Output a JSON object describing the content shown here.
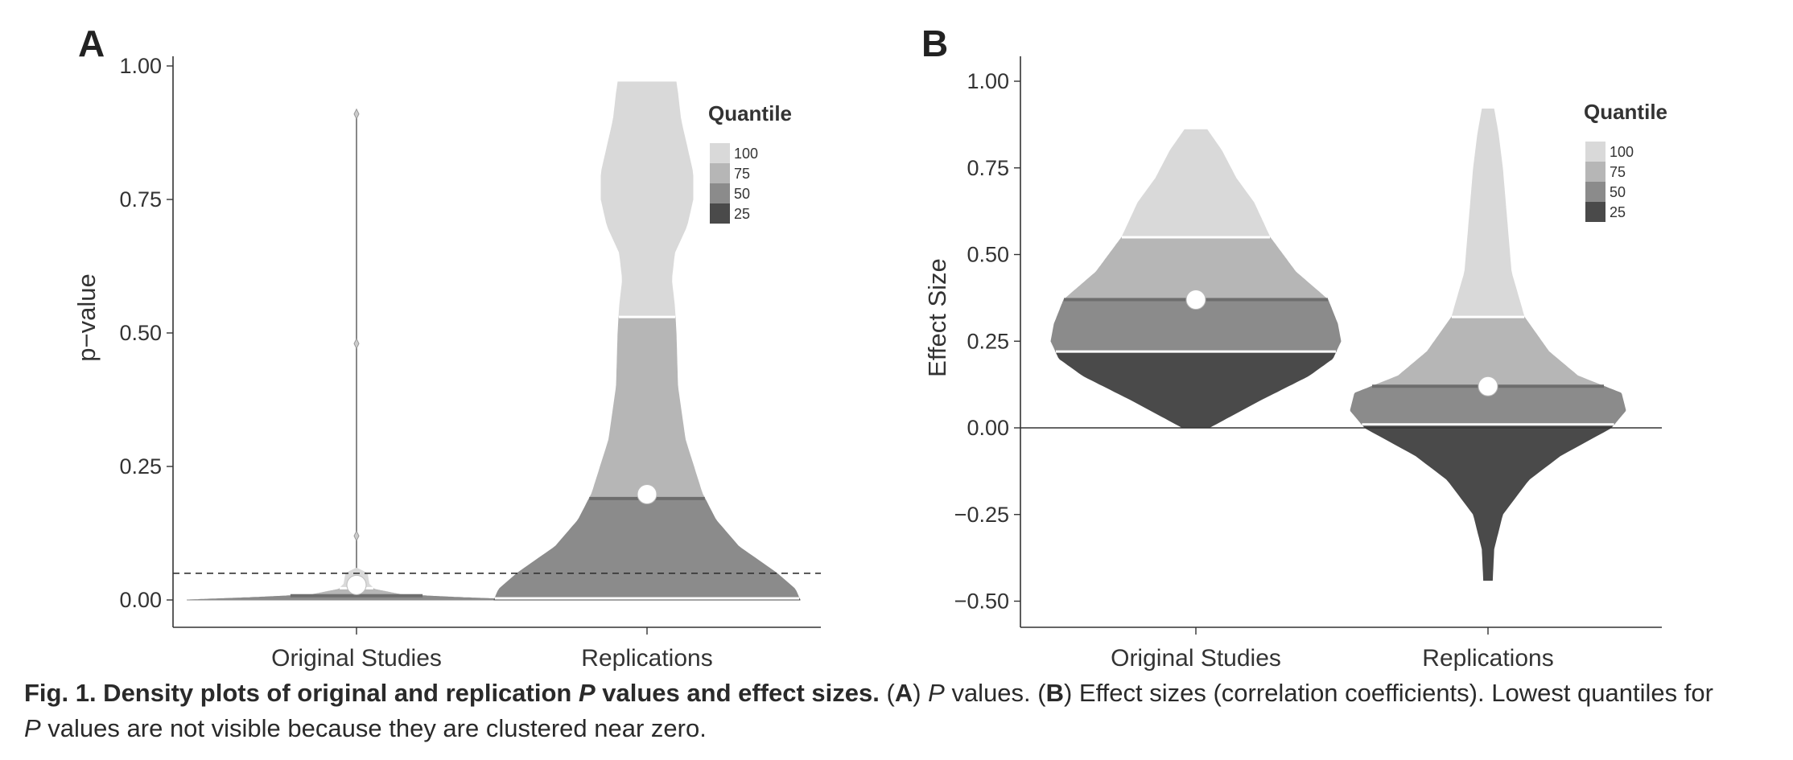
{
  "caption": {
    "bold_prefix": "Fig. 1. Density plots of original and replication ",
    "bold_italic_P": "P",
    "bold_suffix": " values and effect sizes.",
    "part_a_open": " (",
    "part_a_letter": "A",
    "part_a_close": ") ",
    "part_a_italic_P": "P",
    "part_a_text": " values. (",
    "part_b_letter": "B",
    "part_b_text": ") Effect sizes (correlation coefficients). Lowest quantiles for ",
    "line2_italic_P": "P",
    "line2_text": " values are not visible because they are clustered near zero."
  },
  "colors": {
    "q100": "#d9d9d9",
    "q75": "#b6b6b6",
    "q50": "#8b8b8b",
    "q25": "#4a4a4a",
    "median_line": "#6e6e6e",
    "axis": "#333333",
    "mean_dot": "#ffffff"
  },
  "chart_data": [
    {
      "panel": "A",
      "type": "violin",
      "ylabel": "p−value",
      "yticks": [
        "0.00",
        "0.25",
        "0.50",
        "0.75",
        "1.00"
      ],
      "ylim": [
        -0.05,
        1.02
      ],
      "reference_line": {
        "y": 0.05,
        "style": "dashed"
      },
      "categories": [
        "Original Studies",
        "Replications"
      ],
      "legend": {
        "title": "Quantile",
        "placement": "right",
        "entries": [
          "100",
          "75",
          "50",
          "25"
        ]
      },
      "series": [
        {
          "category": "Original Studies",
          "mean": 0.028,
          "quantiles": {
            "q25": 0.0,
            "q50": 0.008,
            "q75": 0.022,
            "q100": 0.91
          },
          "outliers": [
            0.12,
            0.48,
            0.91
          ],
          "density": [
            [
              0.0,
              0.95
            ],
            [
              0.005,
              0.55
            ],
            [
              0.01,
              0.25
            ],
            [
              0.02,
              0.1
            ],
            [
              0.03,
              0.07
            ],
            [
              0.05,
              0.06
            ],
            [
              0.06,
              0.0
            ]
          ]
        },
        {
          "category": "Replications",
          "mean": 0.198,
          "quantiles": {
            "q25": 0.003,
            "q50": 0.19,
            "q75": 0.53,
            "q100": 0.97
          },
          "density": [
            [
              0.0,
              1.0
            ],
            [
              0.02,
              0.97
            ],
            [
              0.05,
              0.85
            ],
            [
              0.1,
              0.6
            ],
            [
              0.15,
              0.45
            ],
            [
              0.2,
              0.36
            ],
            [
              0.3,
              0.25
            ],
            [
              0.4,
              0.2
            ],
            [
              0.5,
              0.19
            ],
            [
              0.55,
              0.18
            ],
            [
              0.6,
              0.16
            ],
            [
              0.65,
              0.18
            ],
            [
              0.7,
              0.26
            ],
            [
              0.75,
              0.3
            ],
            [
              0.8,
              0.3
            ],
            [
              0.85,
              0.26
            ],
            [
              0.9,
              0.22
            ],
            [
              0.95,
              0.2
            ],
            [
              0.97,
              0.19
            ]
          ]
        }
      ]
    },
    {
      "panel": "B",
      "type": "violin",
      "ylabel": "Effect Size",
      "yticks": [
        "−0.50",
        "−0.25",
        "0.00",
        "0.25",
        "0.50",
        "0.75",
        "1.00"
      ],
      "ylim": [
        -0.58,
        1.08
      ],
      "reference_line": {
        "y": 0.0,
        "style": "solid"
      },
      "categories": [
        "Original Studies",
        "Replications"
      ],
      "legend": {
        "title": "Quantile",
        "placement": "right",
        "entries": [
          "100",
          "75",
          "50",
          "25"
        ]
      },
      "series": [
        {
          "category": "Original Studies",
          "mean": 0.37,
          "quantiles": {
            "min": 0.0,
            "q25": 0.22,
            "q50": 0.37,
            "q75": 0.55,
            "q100": 0.86
          },
          "density": [
            [
              0.0,
              0.08
            ],
            [
              0.03,
              0.2
            ],
            [
              0.08,
              0.4
            ],
            [
              0.15,
              0.7
            ],
            [
              0.2,
              0.85
            ],
            [
              0.25,
              0.9
            ],
            [
              0.3,
              0.88
            ],
            [
              0.37,
              0.82
            ],
            [
              0.45,
              0.62
            ],
            [
              0.55,
              0.46
            ],
            [
              0.65,
              0.36
            ],
            [
              0.72,
              0.25
            ],
            [
              0.8,
              0.16
            ],
            [
              0.86,
              0.07
            ]
          ]
        },
        {
          "category": "Replications",
          "mean": 0.12,
          "quantiles": {
            "min": -0.44,
            "q25": 0.01,
            "q50": 0.12,
            "q75": 0.32,
            "q100": 0.92
          },
          "density": [
            [
              -0.44,
              0.03
            ],
            [
              -0.35,
              0.04
            ],
            [
              -0.25,
              0.1
            ],
            [
              -0.15,
              0.28
            ],
            [
              -0.08,
              0.5
            ],
            [
              0.0,
              0.85
            ],
            [
              0.05,
              0.95
            ],
            [
              0.1,
              0.92
            ],
            [
              0.15,
              0.62
            ],
            [
              0.22,
              0.42
            ],
            [
              0.32,
              0.25
            ],
            [
              0.45,
              0.16
            ],
            [
              0.55,
              0.14
            ],
            [
              0.65,
              0.12
            ],
            [
              0.75,
              0.1
            ],
            [
              0.85,
              0.07
            ],
            [
              0.92,
              0.04
            ]
          ]
        }
      ]
    }
  ]
}
